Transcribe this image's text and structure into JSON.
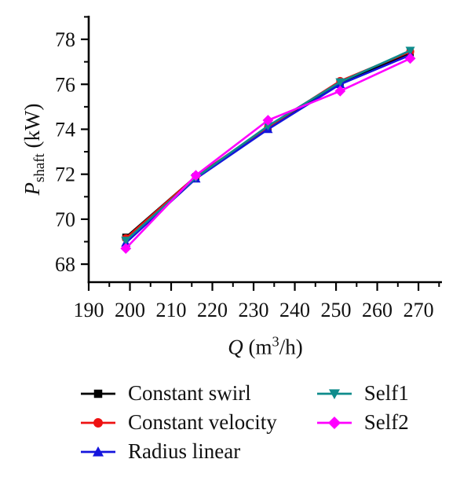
{
  "figure": {
    "background": "#ffffff",
    "text_color": "#111111",
    "axis_color": "#000000"
  },
  "axes": {
    "y_label": {
      "main": "P",
      "sub": "shaft",
      "units": " (kW)"
    },
    "x_label": {
      "main": "Q",
      "pre": " (m",
      "sup": "3",
      "post": "/h)"
    }
  },
  "chart_data": {
    "type": "line",
    "title": "",
    "xlabel": "Q (m^3/h)",
    "ylabel": "P_shaft (kW)",
    "grid": false,
    "legend_position": "bottom",
    "xlim": [
      190,
      275.7
    ],
    "ylim": [
      67.2,
      79.05
    ],
    "x_ticks_major": [
      190,
      200,
      210,
      220,
      230,
      240,
      250,
      260,
      270
    ],
    "x_ticks_minor": [
      195,
      205,
      215,
      225,
      235,
      245,
      255,
      265,
      275
    ],
    "y_ticks_major": [
      68,
      70,
      72,
      74,
      76,
      78
    ],
    "y_ticks_minor": [
      69,
      71,
      73,
      75,
      77,
      79
    ],
    "x": [
      199,
      216,
      233.5,
      251,
      268
    ],
    "series": [
      {
        "name": "Constant swirl",
        "color": "#000000",
        "marker": "square",
        "values": [
          69.2,
          71.9,
          74.05,
          76.05,
          77.4
        ]
      },
      {
        "name": "Constant velocity",
        "color": "#ee1111",
        "marker": "circle",
        "values": [
          69.15,
          71.9,
          74.1,
          76.15,
          77.45
        ]
      },
      {
        "name": "Radius linear",
        "color": "#1414dd",
        "marker": "triangle-up",
        "values": [
          68.95,
          71.8,
          74.0,
          76.0,
          77.3
        ]
      },
      {
        "name": "Self1",
        "color": "#0f8c8c",
        "marker": "triangle-down",
        "values": [
          69.05,
          71.85,
          74.15,
          76.1,
          77.5
        ]
      },
      {
        "name": "Self2",
        "color": "#ff00ff",
        "marker": "diamond",
        "values": [
          68.7,
          71.95,
          74.4,
          75.7,
          77.15
        ]
      }
    ]
  }
}
